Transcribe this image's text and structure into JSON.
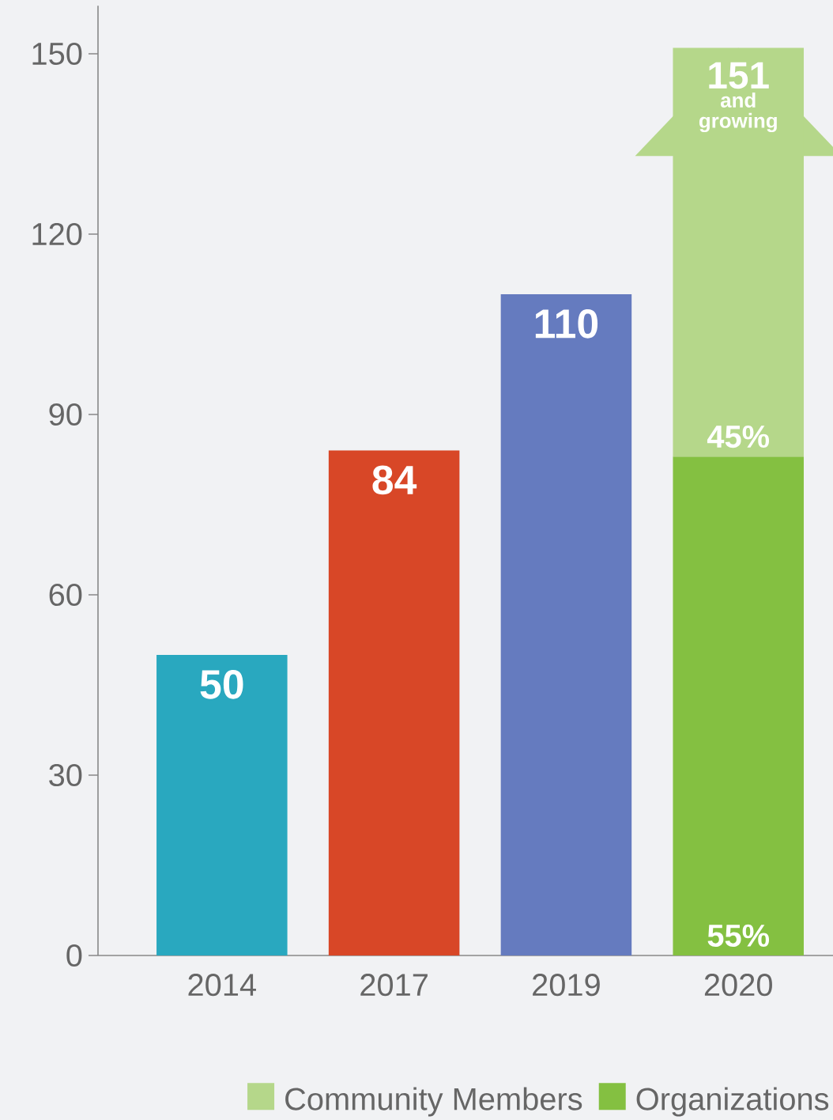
{
  "chart_data": {
    "type": "bar",
    "categories": [
      "2014",
      "2017",
      "2019",
      "2020"
    ],
    "stacked": true,
    "series": [
      {
        "colors": [
          "#29a8bf",
          "#d84727",
          "#657bbf",
          "#84c041"
        ],
        "values": [
          50,
          84,
          110,
          null
        ],
        "value_labels": [
          "50",
          "84",
          "110",
          null
        ]
      },
      {
        "name": "Organizations",
        "color": "#84c041",
        "values": [
          null,
          null,
          null,
          83
        ]
      },
      {
        "name": "Community Members",
        "color": "#b5d78a",
        "values": [
          null,
          null,
          null,
          68
        ]
      }
    ],
    "ylim": [
      0,
      158
    ],
    "yticks": [
      0,
      30,
      60,
      90,
      120,
      150
    ],
    "legend": "bottom",
    "annotations": [
      "151",
      "and growing",
      {
        "text": "45%",
        "x": "2020",
        "y": 83
      },
      {
        "text": "55%",
        "x": "2020",
        "y": 0
      }
    ]
  }
}
